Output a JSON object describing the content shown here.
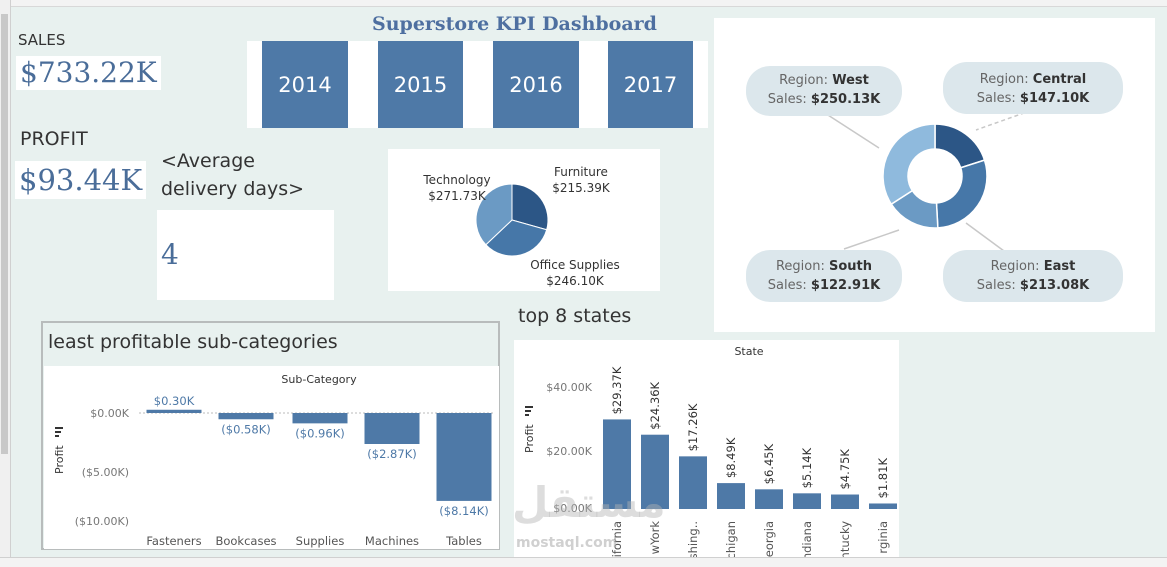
{
  "dashboard": {
    "title": "Superstore KPI Dashboard",
    "sales_label": "SALES",
    "sales_value": "$733.22K",
    "profit_label": "PROFIT",
    "profit_value": "$93.44K",
    "avg_delivery_label": "<Average delivery days>",
    "avg_delivery_value": "4"
  },
  "years": [
    "2014",
    "2015",
    "2016",
    "2017"
  ],
  "regions": [
    {
      "label": "Region:",
      "name": "West",
      "sales_label": "Sales:",
      "sales": "$250.13K",
      "value": 250.13
    },
    {
      "label": "Region:",
      "name": "Central",
      "sales_label": "Sales:",
      "sales": "$147.10K",
      "value": 147.1
    },
    {
      "label": "Region:",
      "name": "South",
      "sales_label": "Sales:",
      "sales": "$122.91K",
      "value": 122.91
    },
    {
      "label": "Region:",
      "name": "East",
      "sales_label": "Sales:",
      "sales": "$213.08K",
      "value": 213.08
    }
  ],
  "category_pie": [
    {
      "name": "Technology",
      "value_label": "$271.73K",
      "value": 271.73,
      "color": "#6b9ac4"
    },
    {
      "name": "Furniture",
      "value_label": "$215.39K",
      "value": 215.39,
      "color": "#2c5686"
    },
    {
      "name": "Office Supplies",
      "value_label": "$246.10K",
      "value": 246.1,
      "color": "#4677a8"
    }
  ],
  "least_profitable": {
    "heading": "least  profitable sub-categories",
    "header": "Sub-Category",
    "ylabel": "Profit",
    "ticks": [
      "$0.00K",
      "($5.00K)",
      "($10.00K)"
    ],
    "categories": [
      "Fasteners",
      "Bookcases",
      "Supplies",
      "Machines",
      "Tables"
    ],
    "value_labels": [
      "$0.30K",
      "($0.58K)",
      "($0.96K)",
      "($2.87K)",
      "($8.14K)"
    ],
    "values": [
      0.3,
      -0.58,
      -0.96,
      -2.87,
      -8.14
    ]
  },
  "top_states": {
    "heading": "top 8 states",
    "header": "State",
    "ylabel": "Profit",
    "ticks": [
      "$40.00K",
      "$20.00K",
      "$0.00K"
    ],
    "categories": [
      "ifornia",
      "wYork",
      "shing..",
      "chigan",
      "eorgia",
      "ndiana",
      "ntucky",
      "rginia"
    ],
    "value_labels": [
      "$29.37K",
      "$24.36K",
      "$17.26K",
      "$8.49K",
      "$6.45K",
      "$5.14K",
      "$4.75K",
      "$1.81K"
    ],
    "values": [
      29.37,
      24.36,
      17.26,
      8.49,
      6.45,
      5.14,
      4.75,
      1.81
    ]
  },
  "chart_data": [
    {
      "type": "bar",
      "title": "least  profitable sub-categories",
      "xlabel": "Sub-Category",
      "ylabel": "Profit",
      "categories": [
        "Fasteners",
        "Bookcases",
        "Supplies",
        "Machines",
        "Tables"
      ],
      "values": [
        0.3,
        -0.58,
        -0.96,
        -2.87,
        -8.14
      ],
      "ylim": [
        -10,
        0.5
      ]
    },
    {
      "type": "bar",
      "title": "top 8 states",
      "xlabel": "State",
      "ylabel": "Profit",
      "categories": [
        "ifornia",
        "wYork",
        "shing..",
        "chigan",
        "eorgia",
        "ndiana",
        "ntucky",
        "rginia"
      ],
      "values": [
        29.37,
        24.36,
        17.26,
        8.49,
        6.45,
        5.14,
        4.75,
        1.81
      ],
      "ylim": [
        0,
        40
      ]
    },
    {
      "type": "pie",
      "categories": [
        "Technology",
        "Furniture",
        "Office Supplies"
      ],
      "values": [
        271.73,
        215.39,
        246.1
      ]
    },
    {
      "type": "pie",
      "categories": [
        "West",
        "Central",
        "South",
        "East"
      ],
      "values": [
        250.13,
        147.1,
        122.91,
        213.08
      ]
    }
  ],
  "colors": {
    "bar": "#4e79a7",
    "background": "#e8f1ef",
    "pill": "#dce7ec",
    "title": "#4e6fa0"
  },
  "watermark": {
    "arabic": "مستقل",
    "latin": "mostaql.com"
  }
}
